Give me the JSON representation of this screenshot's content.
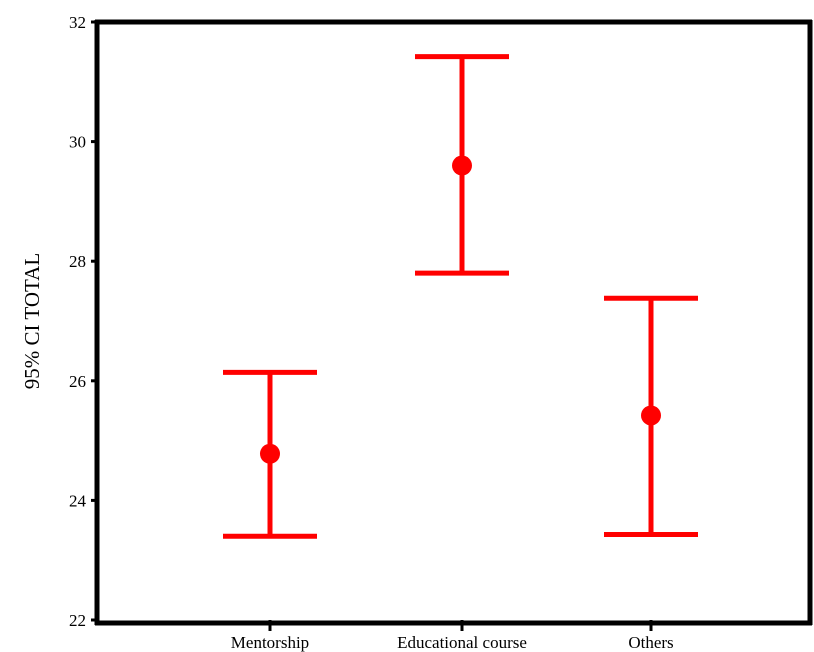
{
  "chart_data": {
    "type": "errorbar",
    "ylabel": "95% CI TOTAL",
    "xlabel": "",
    "ylim": [
      22,
      32
    ],
    "yticks": [
      22,
      24,
      26,
      28,
      30,
      32
    ],
    "grid": false,
    "color": "#ff0000",
    "categories": [
      "Mentorship",
      "Educational course",
      "Others"
    ],
    "means": [
      24.78,
      29.6,
      25.42
    ],
    "lower": [
      23.4,
      27.8,
      23.43
    ],
    "upper": [
      26.14,
      31.42,
      27.38
    ]
  }
}
